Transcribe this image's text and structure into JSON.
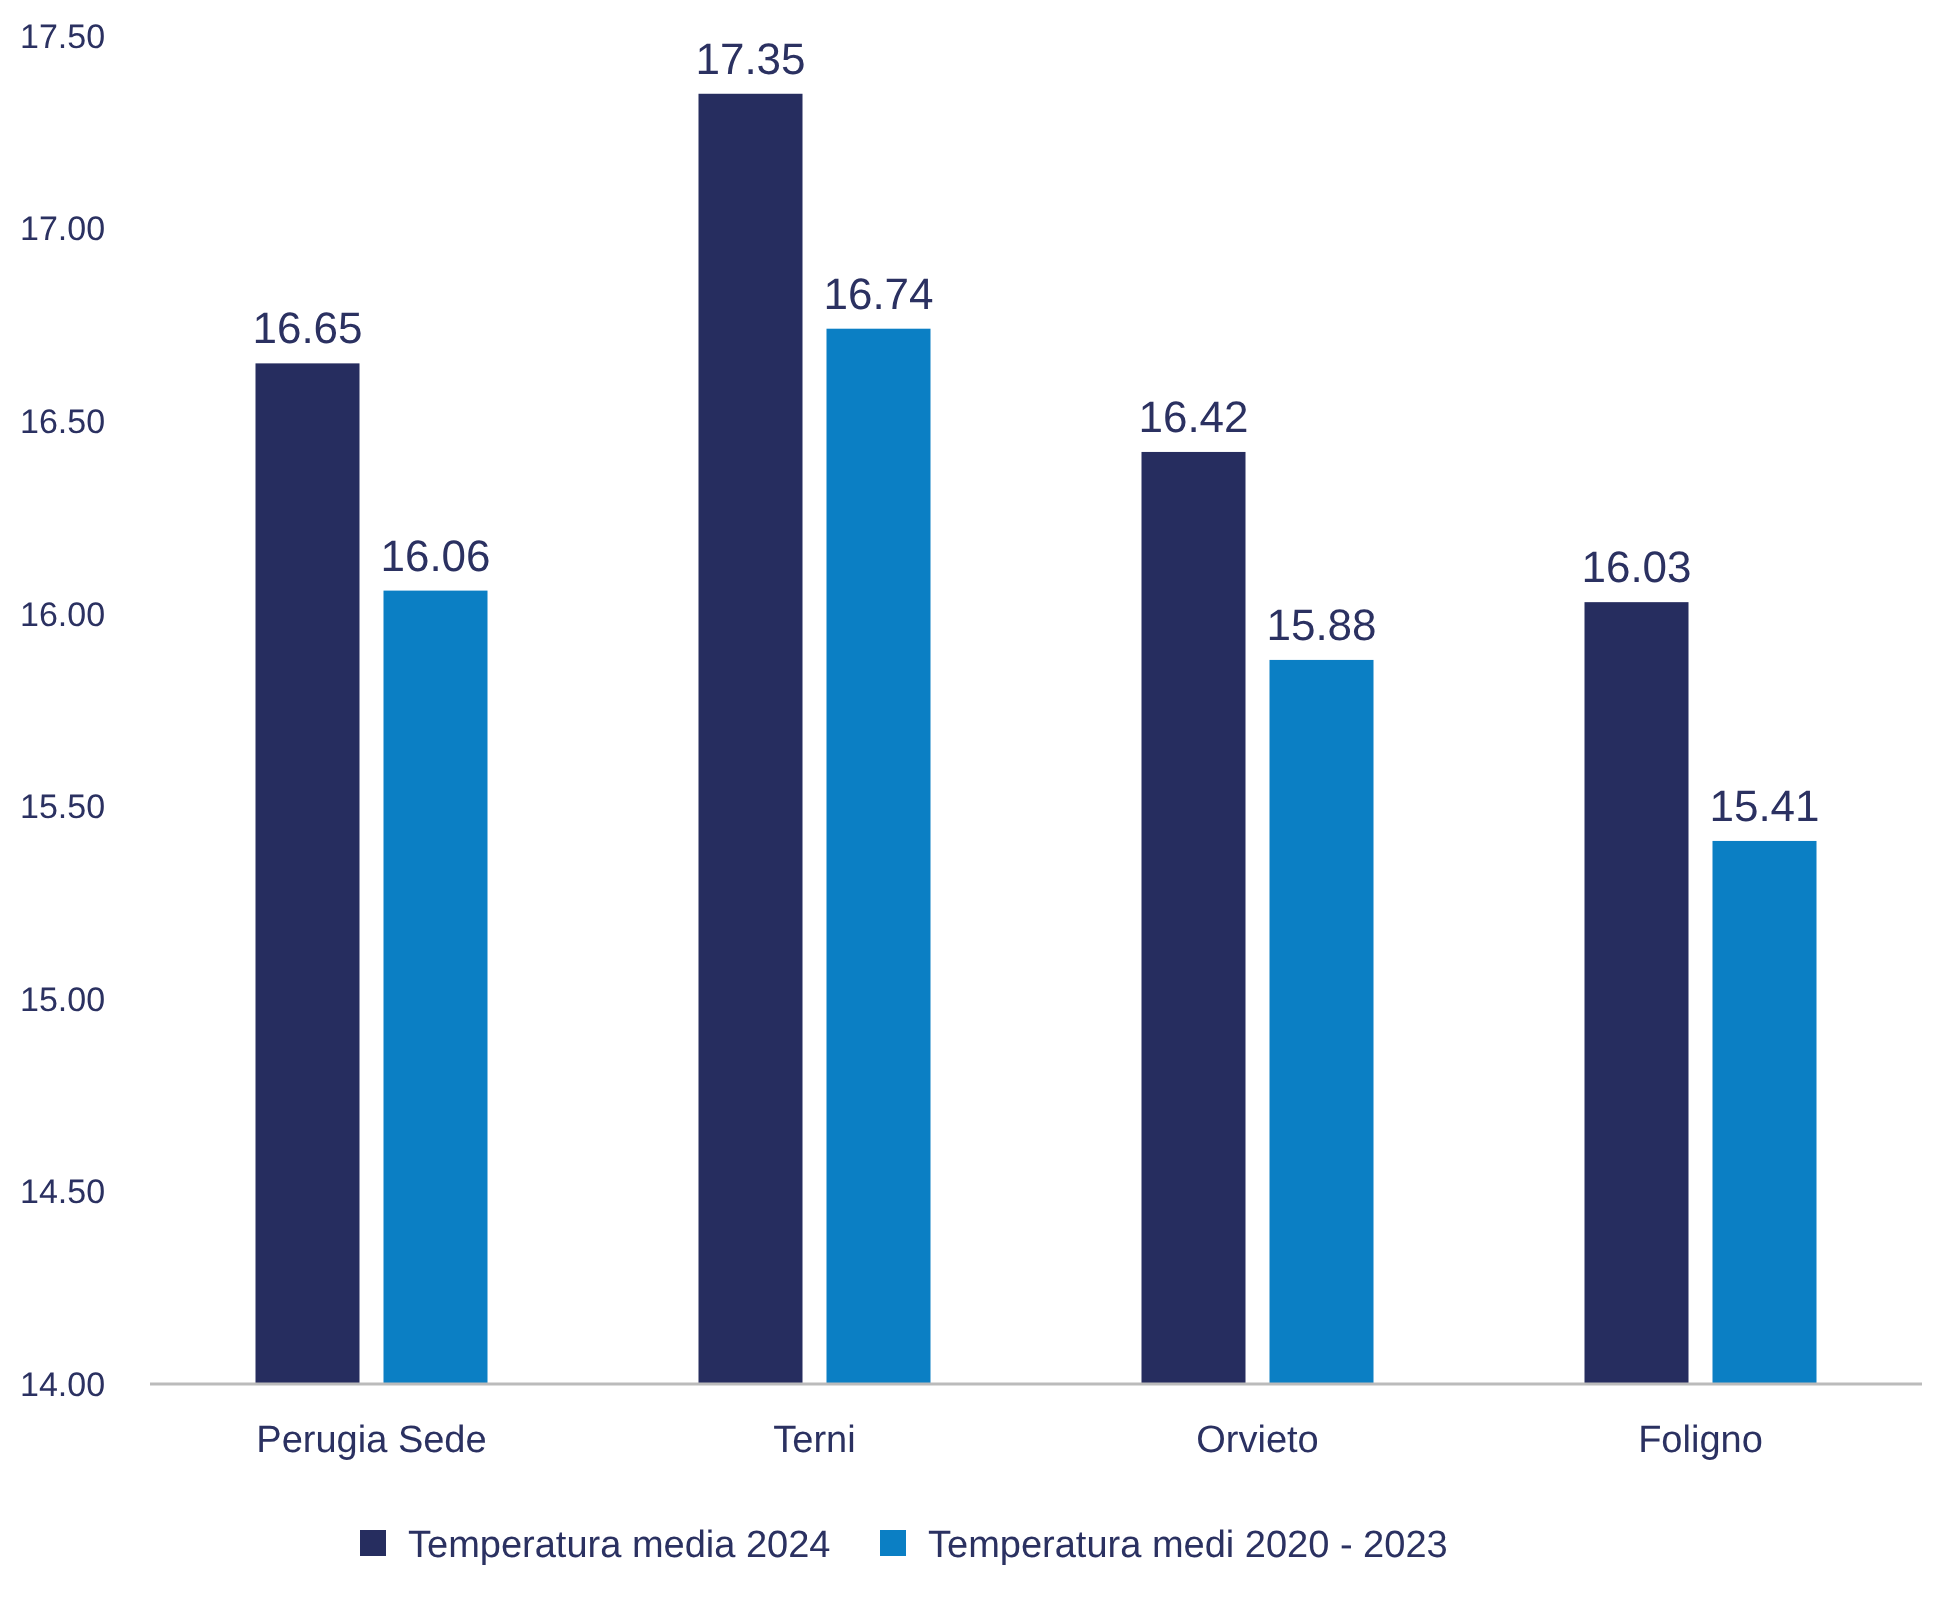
{
  "chart_data": {
    "type": "bar",
    "categories": [
      "Perugia Sede",
      "Terni",
      "Orvieto",
      "Foligno"
    ],
    "series": [
      {
        "name": "Temperatura media 2024",
        "color": "#262d5f",
        "values": [
          16.65,
          17.35,
          16.42,
          16.03
        ]
      },
      {
        "name": "Temperatura medi 2020 - 2023",
        "color": "#0b7fc4",
        "values": [
          16.06,
          16.74,
          15.88,
          15.41
        ]
      }
    ],
    "ylim": [
      14,
      17.5
    ],
    "yticks": [
      {
        "value": 14,
        "label": "14.00"
      },
      {
        "value": 14.5,
        "label": "14.50"
      },
      {
        "value": 15,
        "label": "15.00"
      },
      {
        "value": 15.5,
        "label": "15.50"
      },
      {
        "value": 16,
        "label": "16.00"
      },
      {
        "value": 16.5,
        "label": "16.50"
      },
      {
        "value": 17,
        "label": "17.00"
      },
      {
        "value": 17.5,
        "label": "17.50"
      }
    ],
    "data_labels": true,
    "legend": "bottom",
    "grid": false
  }
}
